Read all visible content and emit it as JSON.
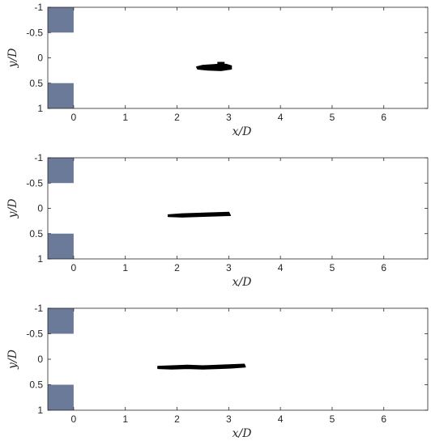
{
  "chart_data": [
    {
      "type": "scatter",
      "xlabel": "x/D",
      "ylabel": "y/D",
      "xlim": [
        -0.5,
        6.85
      ],
      "ylim": [
        -1,
        1
      ],
      "y_reversed": true,
      "grid": false,
      "xticks": [
        "0",
        "1",
        "2",
        "3",
        "4",
        "5",
        "6"
      ],
      "yticks": [
        "-1",
        "-0.5",
        "0",
        "0.5",
        "1"
      ],
      "cylinder_color": "#6b7a99",
      "cylinders": [
        {
          "x": [
            -0.5,
            0
          ],
          "y": [
            -1,
            -0.5
          ]
        },
        {
          "x": [
            -0.5,
            0
          ],
          "y": [
            0.5,
            1
          ]
        }
      ],
      "series": [
        {
          "color": "#000000",
          "x": [
            2.38,
            2.5,
            2.65,
            2.8,
            2.95,
            3.05,
            3.05,
            2.85,
            2.6,
            2.4,
            2.38
          ],
          "y": [
            0.18,
            0.15,
            0.14,
            0.13,
            0.13,
            0.16,
            0.22,
            0.25,
            0.24,
            0.22,
            0.18
          ]
        }
      ],
      "extra_patches": [
        {
          "x": [
            2.78,
            2.92,
            2.92,
            2.78
          ],
          "y": [
            0.08,
            0.08,
            0.15,
            0.15
          ]
        }
      ]
    },
    {
      "type": "scatter",
      "xlabel": "x/D",
      "ylabel": "y/D",
      "xlim": [
        -0.5,
        6.85
      ],
      "ylim": [
        -1,
        1
      ],
      "y_reversed": true,
      "grid": false,
      "xticks": [
        "0",
        "1",
        "2",
        "3",
        "4",
        "5",
        "6"
      ],
      "yticks": [
        "-1",
        "-0.5",
        "0",
        "0.5",
        "1"
      ],
      "cylinder_color": "#6b7a99",
      "cylinders": [
        {
          "x": [
            -0.5,
            0
          ],
          "y": [
            -1,
            -0.5
          ]
        },
        {
          "x": [
            -0.5,
            0
          ],
          "y": [
            0.5,
            1
          ]
        }
      ],
      "series": [
        {
          "color": "#000000",
          "x": [
            1.83,
            2.1,
            2.4,
            2.7,
            3.0,
            3.03,
            2.7,
            2.4,
            2.1,
            1.83
          ],
          "y": [
            0.13,
            0.11,
            0.1,
            0.09,
            0.08,
            0.14,
            0.15,
            0.16,
            0.17,
            0.16
          ]
        }
      ]
    },
    {
      "type": "scatter",
      "xlabel": "x/D",
      "ylabel": "y/D",
      "xlim": [
        -0.5,
        6.85
      ],
      "ylim": [
        -1,
        1
      ],
      "y_reversed": true,
      "grid": false,
      "xticks": [
        "0",
        "1",
        "2",
        "3",
        "4",
        "5",
        "6"
      ],
      "yticks": [
        "-1",
        "-0.5",
        "0",
        "0.5",
        "1"
      ],
      "cylinder_color": "#6b7a99",
      "cylinders": [
        {
          "x": [
            -0.5,
            0
          ],
          "y": [
            -1,
            -0.5
          ]
        },
        {
          "x": [
            -0.5,
            0
          ],
          "y": [
            0.5,
            1
          ]
        }
      ],
      "series": [
        {
          "color": "#000000",
          "x": [
            1.63,
            1.9,
            2.2,
            2.5,
            2.8,
            3.05,
            3.3,
            3.32,
            3.05,
            2.8,
            2.5,
            2.2,
            1.9,
            1.63
          ],
          "y": [
            0.14,
            0.13,
            0.12,
            0.13,
            0.12,
            0.11,
            0.1,
            0.15,
            0.17,
            0.18,
            0.19,
            0.18,
            0.19,
            0.18
          ]
        }
      ]
    }
  ]
}
